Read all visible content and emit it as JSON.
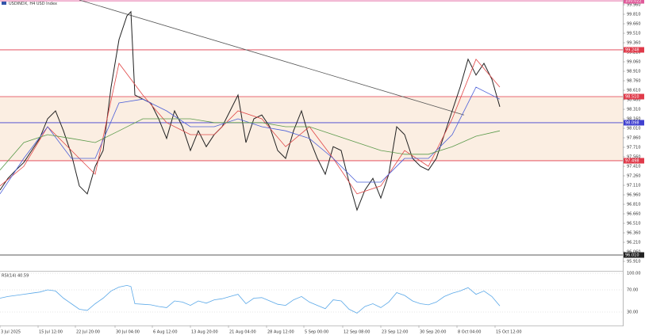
{
  "chart_data": {
    "type": "line",
    "title": "USDINDX, H4 USD Index",
    "xlim": [
      0,
      78.5
    ],
    "ylim": [
      95.785,
      100.035
    ],
    "xticks": [
      {
        "value": 0,
        "label": "3 Jul 2025"
      },
      {
        "value": 4.8,
        "label": "15 Jul 12:00"
      },
      {
        "value": 9.5,
        "label": "22 Jul 20:00"
      },
      {
        "value": 14.5,
        "label": "30 Jul 04:00"
      },
      {
        "value": 19.2,
        "label": "6 Aug 12:00"
      },
      {
        "value": 24,
        "label": "13 Aug 20:00"
      },
      {
        "value": 28.8,
        "label": "21 Aug 04:00"
      },
      {
        "value": 33.6,
        "label": "28 Aug 12:00"
      },
      {
        "value": 38.3,
        "label": "5 Sep 00:00"
      },
      {
        "value": 43.2,
        "label": "12 Sep 08:00"
      },
      {
        "value": 48,
        "label": "23 Sep 12:00"
      },
      {
        "value": 52.8,
        "label": "30 Sep 20:00"
      },
      {
        "value": 57.6,
        "label": "8 Oct 04:00"
      },
      {
        "value": 62.4,
        "label": "15 Oct 12:00"
      }
    ],
    "yticks": [
      {
        "value": 99.96,
        "label": "99.960"
      },
      {
        "value": 99.81,
        "label": "99.810"
      },
      {
        "value": 99.66,
        "label": "99.660"
      },
      {
        "value": 99.51,
        "label": "99.510"
      },
      {
        "value": 99.36,
        "label": "99.360"
      },
      {
        "value": 99.21,
        "label": "99.210"
      },
      {
        "value": 99.06,
        "label": "99.060"
      },
      {
        "value": 98.91,
        "label": "98.910"
      },
      {
        "value": 98.76,
        "label": "98.760"
      },
      {
        "value": 98.61,
        "label": "98.610"
      },
      {
        "value": 98.46,
        "label": "98.460"
      },
      {
        "value": 98.31,
        "label": "98.310"
      },
      {
        "value": 98.16,
        "label": "98.160"
      },
      {
        "value": 98.01,
        "label": "98.010"
      },
      {
        "value": 97.86,
        "label": "97.860"
      },
      {
        "value": 97.71,
        "label": "97.710"
      },
      {
        "value": 97.56,
        "label": "97.560"
      },
      {
        "value": 97.41,
        "label": "97.410"
      },
      {
        "value": 97.26,
        "label": "97.260"
      },
      {
        "value": 97.11,
        "label": "97.110"
      },
      {
        "value": 96.96,
        "label": "96.960"
      },
      {
        "value": 96.81,
        "label": "96.810"
      },
      {
        "value": 96.66,
        "label": "96.660"
      },
      {
        "value": 96.51,
        "label": "96.510"
      },
      {
        "value": 96.36,
        "label": "96.360"
      },
      {
        "value": 96.21,
        "label": "96.210"
      },
      {
        "value": 96.06,
        "label": "96.060"
      },
      {
        "value": 95.91,
        "label": "95.910"
      }
    ],
    "series": [
      {
        "color": "#222222",
        "x": [
          0,
          1,
          2,
          3,
          4,
          5,
          6,
          7,
          8,
          9,
          10,
          11,
          12,
          13,
          14,
          15,
          16,
          16.5,
          17,
          18,
          19,
          20,
          21,
          22,
          23,
          24,
          25,
          26,
          27,
          28,
          29,
          30,
          31,
          32,
          33,
          34,
          35,
          36,
          37,
          38,
          39,
          40,
          41,
          42,
          43,
          44,
          45,
          46,
          47,
          48,
          49,
          50,
          51,
          52,
          53,
          54,
          55,
          56,
          57,
          58,
          59,
          60,
          61,
          62,
          63
        ],
        "values": [
          97.035,
          97.22,
          97.35,
          97.47,
          97.66,
          97.85,
          98.16,
          98.285,
          97.97,
          97.6,
          97.1,
          96.975,
          97.41,
          97.66,
          98.66,
          99.41,
          99.785,
          99.85,
          98.535,
          98.47,
          98.41,
          98.16,
          97.85,
          98.285,
          98.035,
          97.66,
          97.97,
          97.72,
          97.91,
          98.035,
          98.285,
          98.535,
          97.785,
          98.16,
          98.22,
          98.035,
          97.66,
          97.535,
          97.97,
          98.285,
          97.85,
          97.535,
          97.285,
          97.72,
          97.66,
          97.16,
          96.72,
          97.035,
          97.22,
          96.91,
          97.285,
          98.035,
          97.91,
          97.535,
          97.41,
          97.35,
          97.535,
          97.91,
          98.285,
          98.66,
          99.1,
          98.85,
          99.035,
          98.785,
          98.35
        ]
      },
      {
        "color": "#e04848",
        "x": [
          0,
          3,
          6,
          9,
          12,
          15,
          18,
          21,
          24,
          27,
          30,
          33,
          36,
          39,
          42,
          45,
          48,
          51,
          54,
          57,
          60,
          63
        ],
        "values": [
          97.1,
          97.41,
          98.035,
          97.66,
          97.285,
          99.035,
          98.535,
          98.1,
          97.91,
          97.91,
          98.285,
          98.16,
          97.72,
          98.035,
          97.535,
          96.975,
          97.1,
          97.66,
          97.41,
          98.16,
          99.1,
          98.66
        ]
      },
      {
        "color": "#4a5ed8",
        "x": [
          0,
          3,
          6,
          9,
          12,
          15,
          18,
          21,
          24,
          27,
          30,
          33,
          36,
          39,
          42,
          45,
          48,
          51,
          54,
          57,
          60,
          63
        ],
        "values": [
          96.975,
          97.535,
          98.035,
          97.535,
          97.535,
          98.41,
          98.47,
          98.285,
          98.035,
          98.035,
          98.16,
          98.035,
          97.97,
          97.85,
          97.535,
          97.16,
          97.16,
          97.535,
          97.535,
          97.91,
          98.66,
          98.47
        ]
      },
      {
        "color": "#5a9a4a",
        "x": [
          0,
          3,
          6,
          9,
          12,
          15,
          18,
          21,
          24,
          27,
          30,
          33,
          36,
          39,
          42,
          45,
          48,
          51,
          54,
          57,
          60,
          63
        ],
        "values": [
          97.35,
          97.785,
          97.91,
          97.85,
          97.785,
          97.97,
          98.16,
          98.16,
          98.16,
          98.1,
          98.1,
          98.1,
          98.035,
          98.035,
          97.91,
          97.785,
          97.66,
          97.6,
          97.6,
          97.72,
          97.885,
          97.97
        ]
      }
    ],
    "zone": {
      "range": [
        97.498,
        98.51
      ],
      "color": "#fbeee2"
    },
    "levels": [
      {
        "value": 100.022,
        "label": "100.022",
        "color": "#e05a9a"
      },
      {
        "value": 99.248,
        "label": "99.248",
        "color": "#e03a4a"
      },
      {
        "value": 98.51,
        "label": "98.510",
        "color": "#e03a4a"
      },
      {
        "value": 98.098,
        "label": "98.098",
        "color": "#4040d0"
      },
      {
        "value": 97.498,
        "label": "97.498",
        "color": "#e03a4a"
      },
      {
        "value": 96.01,
        "label": "96.010",
        "color": "#222222"
      }
    ],
    "trendline": {
      "x": [
        10,
        58.5
      ],
      "y": [
        100.035,
        98.22
      ],
      "color": "#555555"
    },
    "rsi": {
      "label": "RSI(14) 40.59",
      "color": "#5aa8e8",
      "ylim": [
        0,
        100
      ],
      "yticks": [
        {
          "value": 100,
          "label": "100.00"
        },
        {
          "value": 70,
          "label": "70.00"
        },
        {
          "value": 30,
          "label": "30.00"
        }
      ],
      "values": [
        55,
        58,
        60,
        62,
        64,
        66,
        70,
        68,
        55,
        45,
        35,
        33,
        45,
        55,
        68,
        75,
        78,
        76,
        45,
        44,
        43,
        40,
        38,
        50,
        48,
        42,
        50,
        46,
        52,
        54,
        58,
        62,
        45,
        55,
        56,
        50,
        44,
        42,
        52,
        58,
        48,
        42,
        36,
        52,
        50,
        35,
        28,
        40,
        45,
        38,
        48,
        65,
        60,
        50,
        45,
        43,
        48,
        58,
        64,
        68,
        74,
        62,
        68,
        58,
        41
      ]
    }
  }
}
